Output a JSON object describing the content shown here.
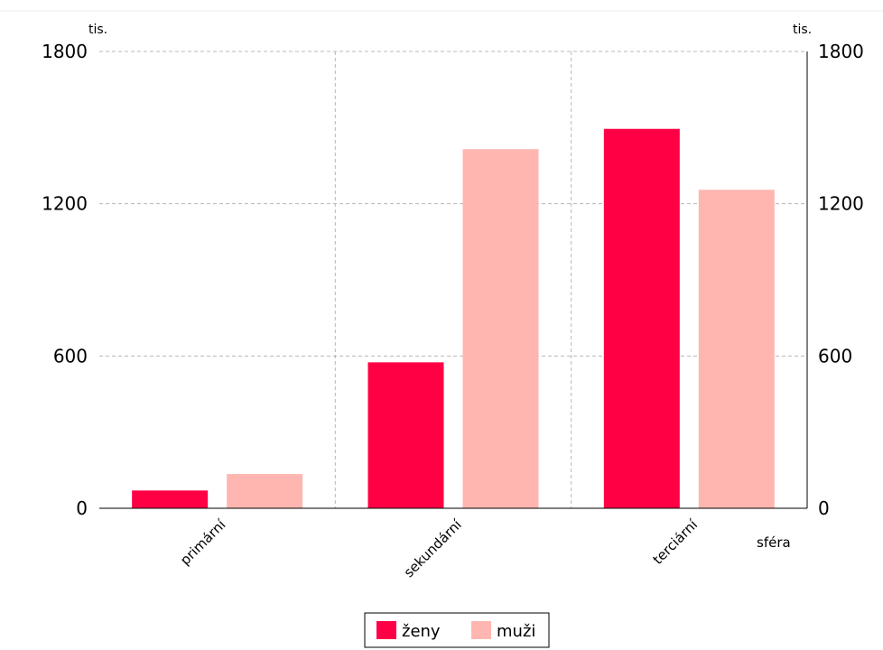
{
  "chart_data": {
    "type": "bar",
    "categories": [
      "primární",
      "sekundární",
      "terciární"
    ],
    "series": [
      {
        "name": "ženy",
        "values": [
          70,
          575,
          1495
        ],
        "color": "#ff0044"
      },
      {
        "name": "muži",
        "values": [
          135,
          1415,
          1255
        ],
        "color": "#ffb6b1"
      }
    ],
    "unit_left": "tis.",
    "unit_right": "tis.",
    "xlabel": "sféra",
    "ylim": [
      0,
      1800
    ],
    "yticks": [
      0,
      600,
      1200,
      1800
    ],
    "grid": true,
    "legend_position": "bottom"
  }
}
